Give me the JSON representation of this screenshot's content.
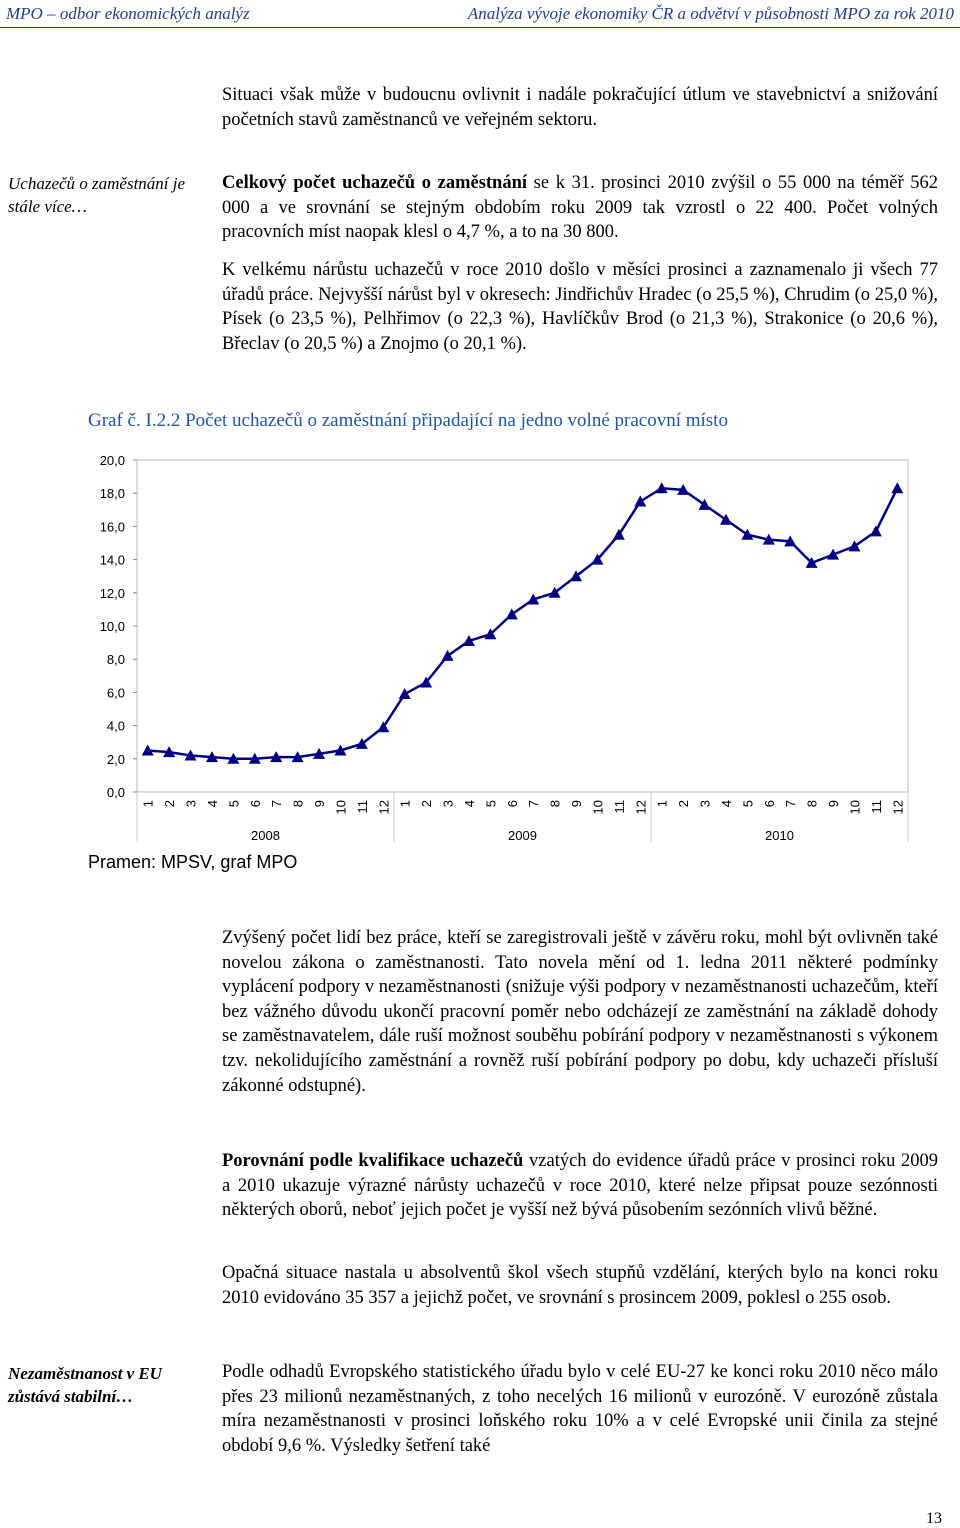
{
  "header": {
    "left": "MPO – odbor ekonomických analýz",
    "right": "Analýza vývoje ekonomiky ČR a odvětví v působnosti MPO za rok 2010"
  },
  "paragraphs": [
    {
      "text": "Situaci však může v budoucnu ovlivnit i nadále pokračující útlum ve stavebnictví a snižování početních stavů zaměstnanců ve veřejném sektoru."
    },
    {
      "bold": "Celkový počet uchazečů o zaměstnání",
      "text": " se k 31. prosinci 2010 zvýšil o 55 000 na téměř 562 000 a ve srovnání se stejným obdobím roku 2009 tak vzrostl o 22 400. Počet volných pracovních míst naopak klesl o 4,7 %, a to na 30 800."
    },
    {
      "text": "K velkému nárůstu uchazečů v roce 2010 došlo v měsíci prosinci a zaznamenalo ji všech 77 úřadů práce. Nejvyšší nárůst byl v okresech: Jindřichův Hradec (o 25,5 %), Chrudim (o 25,0 %), Písek (o 23,5 %), Pelhřimov (o 22,3 %), Havlíčkův Brod (o 21,3 %), Strakonice (o 20,6 %), Břeclav (o 20,5 %) a Znojmo (o 20,1 %)."
    },
    {
      "text": "Zvýšený počet lidí bez práce, kteří se zaregistrovali ještě v závěru roku, mohl být ovlivněn také novelou zákona o zaměstnanosti. Tato novela mění od 1. ledna 2011 některé podmínky vyplácení podpory v nezaměstnanosti (snižuje výši podpory v nezaměstnanosti uchazečům, kteří bez vážného důvodu ukončí pracovní poměr nebo odcházejí ze zaměstnání na základě dohody se zaměstnavatelem, dále ruší možnost souběhu pobírání podpory v nezaměstnanosti s výkonem tzv. nekolidujícího zaměstnání a rovněž ruší pobírání podpory po dobu, kdy uchazeči přísluší zákonné odstupné)."
    },
    {
      "bold": "Porovnání podle kvalifikace uchazečů",
      "text": " vzatých do evidence úřadů práce v prosinci roku 2009 a 2010 ukazuje výrazné nárůsty uchazečů v roce 2010, které nelze připsat pouze sezónnosti některých oborů, neboť jejich počet je vyšší než bývá působením sezónních vlivů běžné."
    },
    {
      "text": "Opačná situace nastala u absolventů škol všech stupňů vzdělání, kterých bylo na konci roku 2010 evidováno 35 357 a jejichž počet, ve srovnání s prosincem 2009, poklesl o 255 osob."
    },
    {
      "text": "Podle odhadů Evropského statistického úřadu bylo v celé EU-27 ke konci roku 2010 něco málo přes 23 milionů nezaměstnaných, z toho necelých 16 milionů v eurozóně. V eurozóně zůstala míra nezaměstnanosti v prosinci loňského roku 10% a v celé Evropské unii činila za stejné období 9,6 %. Výsledky šetření také"
    }
  ],
  "side_notes": [
    "Uchazečů o zaměstnání je stále více…",
    "Nezaměstnanost v EU zůstává stabilní…"
  ],
  "chart_data": {
    "type": "line",
    "title": "Graf č. I.2.2 Počet uchazečů o zaměstnání připadající na jedno volné pracovní místo",
    "source": "Pramen: MPSV, graf MPO",
    "categories": [
      "1",
      "2",
      "3",
      "4",
      "5",
      "6",
      "7",
      "8",
      "9",
      "10",
      "11",
      "12",
      "1",
      "2",
      "3",
      "4",
      "5",
      "6",
      "7",
      "8",
      "9",
      "10",
      "11",
      "12",
      "1",
      "2",
      "3",
      "4",
      "5",
      "6",
      "7",
      "8",
      "9",
      "10",
      "11",
      "12"
    ],
    "groups": [
      "2008",
      "2009",
      "2010"
    ],
    "values": [
      2.5,
      2.4,
      2.2,
      2.1,
      2.0,
      2.0,
      2.1,
      2.1,
      2.3,
      2.5,
      2.9,
      3.9,
      5.9,
      6.6,
      8.2,
      9.1,
      9.5,
      10.7,
      11.6,
      12.0,
      13.0,
      14.0,
      15.5,
      17.5,
      18.3,
      18.2,
      17.3,
      16.4,
      15.5,
      15.2,
      15.1,
      13.8,
      14.3,
      14.8,
      15.7,
      18.3
    ],
    "color": "#000080",
    "ylim": [
      0,
      20
    ],
    "yticks": [
      {
        "value": 0,
        "label": "0,0"
      },
      {
        "value": 2,
        "label": "2,0"
      },
      {
        "value": 4,
        "label": "4,0"
      },
      {
        "value": 6,
        "label": "6,0"
      },
      {
        "value": 8,
        "label": "8,0"
      },
      {
        "value": 10,
        "label": "10,0"
      },
      {
        "value": 12,
        "label": "12,0"
      },
      {
        "value": 14,
        "label": "14,0"
      },
      {
        "value": 16,
        "label": "16,0"
      },
      {
        "value": 18,
        "label": "18,0"
      },
      {
        "value": 20,
        "label": "20,0"
      }
    ]
  },
  "page_number": "13"
}
